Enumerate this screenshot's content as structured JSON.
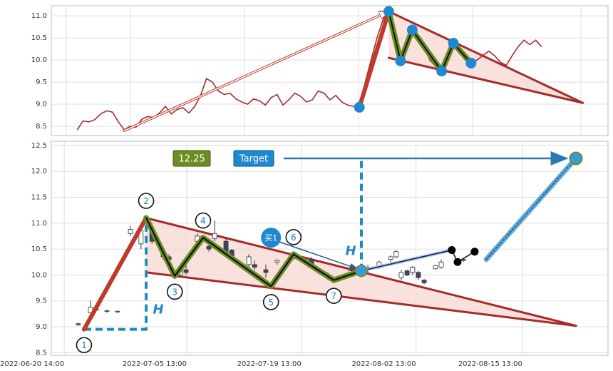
{
  "chart_data": [
    {
      "type": "line",
      "series": [
        {
          "color": "#a52a2a",
          "values": [
            8.42,
            8.62,
            8.6,
            8.65,
            8.78,
            8.85,
            8.82,
            8.6,
            8.42,
            8.5,
            8.48,
            8.66,
            8.72,
            8.7,
            8.8,
            8.95,
            8.78,
            8.88,
            8.92,
            8.8,
            8.95,
            9.2,
            9.58,
            9.5,
            9.3,
            9.22,
            9.25,
            9.12,
            9.05,
            9.0,
            9.12,
            9.08,
            8.98,
            9.15,
            9.22,
            8.98,
            9.1,
            9.25,
            9.18,
            9.05,
            9.1,
            9.3,
            9.25,
            9.1,
            9.2,
            9.05,
            8.98,
            8.95,
            8.93,
            9.5,
            10.0,
            10.5,
            10.9,
            11.1,
            10.5,
            9.98,
            10.4,
            10.68,
            10.55,
            10.3,
            10.0,
            9.85,
            9.75,
            10.1,
            10.38,
            10.2,
            10.0,
            9.93,
            10.0,
            10.1,
            10.2,
            10.1,
            9.95,
            9.88,
            10.1,
            10.3,
            10.45,
            10.35,
            10.45,
            10.3
          ]
        }
      ],
      "xlim": [
        -4.4,
        90.3
      ],
      "ylim": [
        8.29,
        11.23
      ],
      "yticks": [
        8.5,
        {
          "value": 9,
          "label": "9.0"
        },
        9.5,
        {
          "value": 10,
          "label": "10.0"
        },
        10.5,
        {
          "value": 11,
          "label": "11.0"
        }
      ],
      "grid": true,
      "arrow": {
        "x": [
          8,
          53
        ],
        "y": [
          8.4,
          11.1
        ],
        "color": "#c0392b"
      },
      "pattern": {
        "x": [
          48,
          53,
          55,
          57,
          62,
          64,
          67
        ],
        "y": [
          8.93,
          11.1,
          9.98,
          10.68,
          9.75,
          10.38,
          9.93
        ]
      },
      "triangle": {
        "upper": {
          "x": [
            53,
            86
          ],
          "y": [
            11.1,
            9.03
          ]
        },
        "lower": {
          "x": [
            53,
            86
          ],
          "y": [
            10.05,
            9.03
          ]
        },
        "color": "#a52a2a",
        "fill": "#f7d4cf"
      },
      "impulse_color": "#c0392b",
      "wave_color": "#6b8e23",
      "point_color": "#1e88d0"
    },
    {
      "type": "candlestick",
      "x": [
        "2022-06-22 07:00",
        "2022-06-23 19:00",
        "2022-06-24 12:00",
        "2022-06-25 19:00",
        "2022-06-27 02:00",
        "2022-06-28 16:00",
        "2022-06-29 23:00",
        "2022-07-01 07:00",
        "2022-07-02 16:00",
        "2022-07-03 09:00",
        "2022-07-04 18:00",
        "2022-07-05 11:00",
        "2022-07-06 20:00",
        "2022-07-08 06:00",
        "2022-07-08 23:00",
        "2022-07-10 08:00",
        "2022-07-11 01:00",
        "2022-07-13 03:00",
        "2022-07-13 20:00",
        "2022-07-15 05:00",
        "2022-07-16 14:00",
        "2022-07-18 17:00",
        "2022-07-20 19:00",
        "2022-07-22 19:00",
        "2022-07-25 14:00",
        "2022-07-27 16:00",
        "2022-07-29 01:00",
        "2022-07-30 11:00",
        "2022-07-31 03:00",
        "2022-07-31 18:00",
        "2022-08-01 11:00",
        "2022-08-02 03:00",
        "2022-08-02 20:00",
        "2022-08-03 13:00",
        "2022-08-04 22:00",
        "2022-08-05 15:00",
        "2022-08-08 08:00"
      ],
      "open": [
        9.06,
        9.27,
        9.34,
        9.3,
        9.29,
        10.8,
        10.6,
        10.9,
        10.4,
        10.35,
        10.0,
        10.1,
        10.65,
        10.55,
        10.7,
        10.65,
        10.48,
        10.2,
        10.2,
        10.1,
        10.25,
        10.35,
        10.3,
        10.0,
        10.02,
        10.1,
        10.18,
        10.3,
        10.35,
        9.95,
        10.08,
        10.05,
        10.05,
        9.9,
        10.12,
        10.15,
        10.3
      ],
      "high": [
        9.08,
        9.5,
        9.38,
        9.33,
        9.32,
        10.95,
        10.9,
        11.0,
        10.5,
        10.4,
        10.15,
        10.2,
        10.8,
        10.65,
        11.05,
        10.7,
        10.5,
        10.4,
        10.28,
        10.2,
        10.3,
        10.45,
        10.35,
        10.05,
        10.1,
        10.2,
        10.28,
        10.38,
        10.48,
        10.1,
        10.1,
        10.18,
        10.08,
        9.92,
        10.2,
        10.3,
        10.33
      ],
      "low": [
        9.02,
        9.25,
        9.3,
        9.27,
        9.27,
        10.75,
        10.5,
        10.6,
        10.3,
        10.25,
        9.95,
        10.0,
        10.6,
        10.45,
        10.65,
        10.4,
        10.3,
        10.15,
        10.1,
        9.95,
        10.2,
        10.3,
        10.15,
        9.9,
        9.98,
        10.05,
        10.12,
        10.25,
        10.32,
        9.9,
        9.98,
        10.0,
        9.9,
        9.82,
        10.1,
        10.12,
        10.25
      ],
      "close": [
        9.04,
        9.38,
        9.33,
        9.31,
        9.3,
        10.88,
        10.85,
        10.65,
        10.35,
        10.3,
        10.1,
        10.05,
        10.75,
        10.5,
        10.8,
        10.45,
        10.35,
        10.35,
        10.15,
        10.05,
        10.28,
        10.42,
        10.2,
        9.95,
        10.08,
        10.15,
        10.25,
        10.35,
        10.45,
        10.05,
        10.0,
        10.15,
        9.95,
        9.85,
        10.18,
        10.25,
        10.28
      ],
      "up_color": "#ffffff",
      "down_color": "#3d4560",
      "xlim": [
        "2022-06-19 00:00",
        "2022-08-26 00:00"
      ],
      "xticks": [
        "2022-06-20 14:00",
        "2022-07-05 13:00",
        "2022-07-19 13:00",
        "2022-08-02 13:00",
        "2022-08-15 13:00"
      ],
      "ylim": [
        8.45,
        12.58
      ],
      "yticks": [
        8.5,
        {
          "value": 9,
          "label": "9.0"
        },
        9.5,
        {
          "value": 10,
          "label": "10.0"
        },
        10.5,
        {
          "value": 11,
          "label": "11.0"
        },
        11.5,
        {
          "value": 12,
          "label": "12.0"
        },
        12.5
      ],
      "grid": true,
      "waves": {
        "labels": [
          "1",
          "2",
          "3",
          "4",
          "5",
          "6",
          "7"
        ],
        "x": [
          "2022-06-23 00:00",
          "2022-06-30 14:00",
          "2022-07-04 02:00",
          "2022-07-07 13:00",
          "2022-07-15 20:00",
          "2022-07-18 14:00",
          "2022-07-23 12:00"
        ],
        "y": [
          8.95,
          11.1,
          9.98,
          10.72,
          9.78,
          10.4,
          9.9
        ]
      },
      "breakout": {
        "x": "2022-07-26 21:00",
        "y": 10.08
      },
      "triangle": {
        "upper": {
          "x": [
            "2022-06-30 14:00",
            "2022-08-22 02:00"
          ],
          "y": [
            11.1,
            9.02
          ]
        },
        "lower": {
          "x": [
            "2022-06-30 14:00",
            "2022-08-22 02:00"
          ],
          "y": [
            10.05,
            9.02
          ]
        },
        "color": "#a52a2a",
        "fill": "#f7d4cf"
      },
      "heights": [
        {
          "label": "H",
          "x": [
            "2022-06-23 00:00",
            "2022-06-30 14:00",
            "2022-06-30 14:00"
          ],
          "y": [
            8.95,
            8.95,
            11.1
          ]
        },
        {
          "label": "H",
          "x": [
            "2022-07-26 21:00",
            "2022-07-26 21:00"
          ],
          "y": [
            10.08,
            12.25
          ]
        }
      ],
      "target": {
        "name": "Target",
        "value": 12.25,
        "x": "2022-08-22 02:00"
      },
      "projection": {
        "x": "2022-08-11 03:00",
        "y": 10.3
      },
      "buy": {
        "label": "买1",
        "x": "2022-07-15 20:00",
        "y": 10.72
      },
      "recent": {
        "x": [
          "2022-08-06 22:00",
          "2022-08-07 15:00",
          "2022-08-09 17:00"
        ],
        "y": [
          10.48,
          10.25,
          10.45
        ]
      },
      "impulse_color": "#c0392b",
      "wave_color": "#6b8e23",
      "point_color": "#1e88d0",
      "height_color": "#1f8ac0"
    }
  ]
}
